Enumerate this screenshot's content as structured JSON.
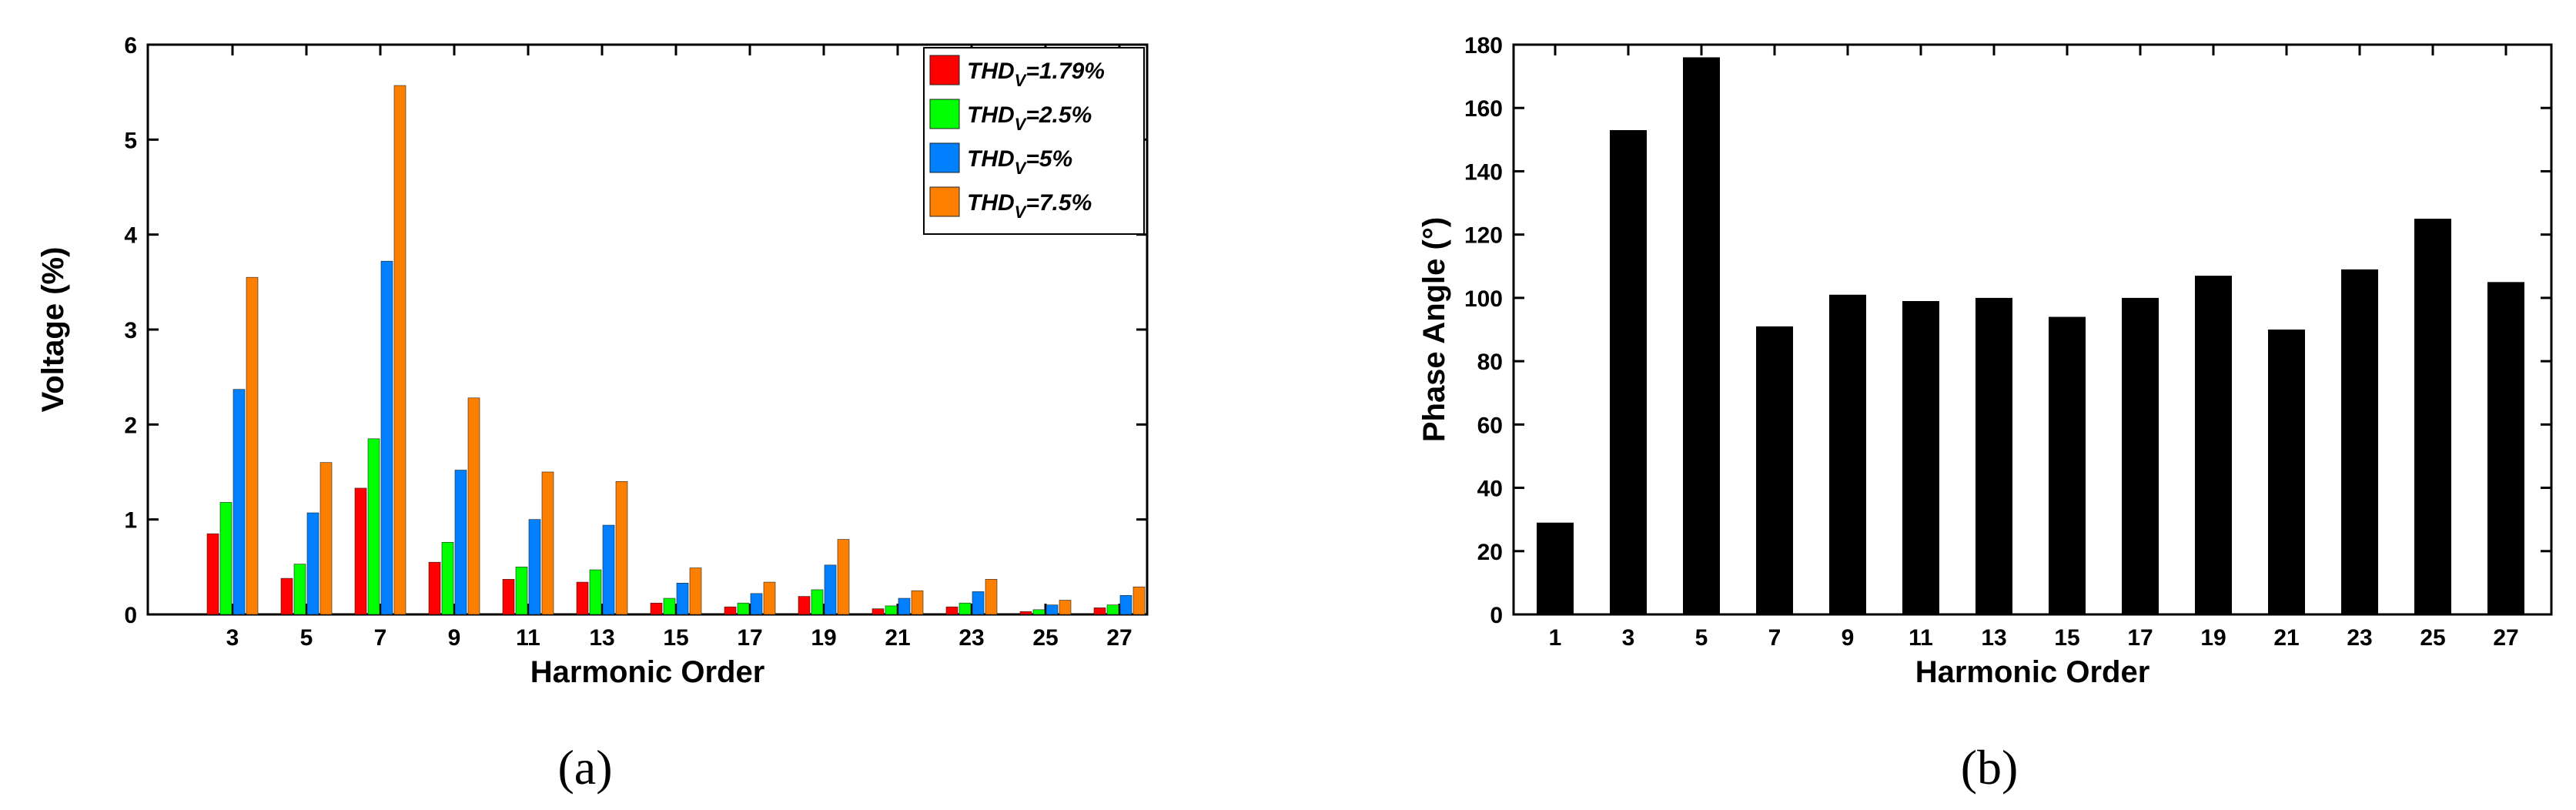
{
  "chart_data": [
    {
      "panel_label": "(a)",
      "type": "bar",
      "xlabel": "Harmonic Order",
      "ylabel": "Voltage (%)",
      "categories": [
        "3",
        "5",
        "7",
        "9",
        "11",
        "13",
        "15",
        "17",
        "19",
        "21",
        "23",
        "25",
        "27"
      ],
      "ylim": [
        0,
        6
      ],
      "yticks": [
        "0",
        "1",
        "2",
        "3",
        "4",
        "5",
        "6"
      ],
      "legend_position": "top-right",
      "series": [
        {
          "name_main": "THD",
          "name_sub": "V",
          "name_rest": "=1.79%",
          "color": "#ff0000",
          "values": [
            0.85,
            0.38,
            1.33,
            0.55,
            0.37,
            0.34,
            0.12,
            0.08,
            0.19,
            0.06,
            0.08,
            0.03,
            0.07
          ]
        },
        {
          "name_main": "THD",
          "name_sub": "V",
          "name_rest": "=2.5%",
          "color": "#00ff00",
          "values": [
            1.18,
            0.53,
            1.85,
            0.76,
            0.5,
            0.47,
            0.17,
            0.12,
            0.26,
            0.09,
            0.12,
            0.05,
            0.1
          ]
        },
        {
          "name_main": "THD",
          "name_sub": "V",
          "name_rest": "=5%",
          "color": "#0080ff",
          "values": [
            2.37,
            1.07,
            3.72,
            1.52,
            1.0,
            0.94,
            0.33,
            0.22,
            0.52,
            0.17,
            0.24,
            0.1,
            0.2
          ]
        },
        {
          "name_main": "THD",
          "name_sub": "V",
          "name_rest": "=7.5%",
          "color": "#ff8000",
          "values": [
            3.55,
            1.6,
            5.57,
            2.28,
            1.5,
            1.4,
            0.49,
            0.34,
            0.79,
            0.25,
            0.37,
            0.15,
            0.29
          ]
        }
      ]
    },
    {
      "panel_label": "(b)",
      "type": "bar",
      "xlabel": "Harmonic Order",
      "ylabel": "Phase Angle (°)",
      "categories": [
        "1",
        "3",
        "5",
        "7",
        "9",
        "11",
        "13",
        "15",
        "17",
        "19",
        "21",
        "23",
        "25",
        "27"
      ],
      "ylim": [
        0,
        180
      ],
      "yticks": [
        "0",
        "20",
        "40",
        "60",
        "80",
        "100",
        "120",
        "140",
        "160",
        "180"
      ],
      "color": "#000000",
      "values": [
        29,
        153,
        176,
        91,
        101,
        99,
        100,
        94,
        100,
        107,
        90,
        109,
        125,
        105
      ]
    }
  ]
}
